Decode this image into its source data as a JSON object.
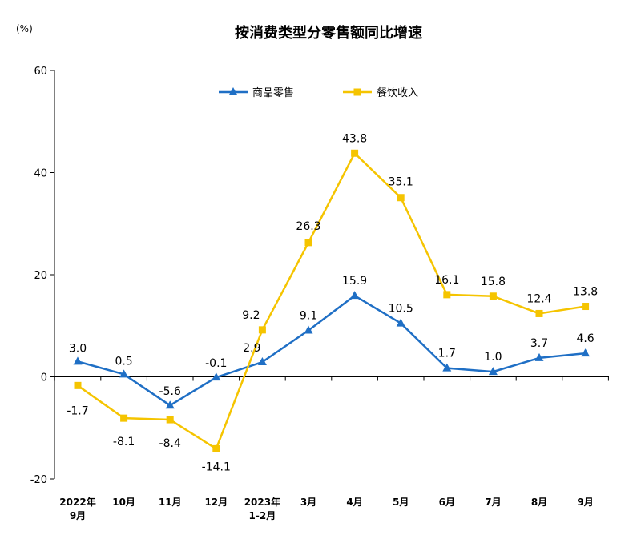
{
  "chart_data": {
    "type": "line",
    "title": "按消费类型分零售额同比增速",
    "y_unit": "(%)",
    "ylim": [
      -20,
      60
    ],
    "yticks": [
      -20,
      0,
      20,
      40,
      60
    ],
    "grid": false,
    "legend_position": "top-center",
    "categories": [
      [
        "2022年",
        "9月"
      ],
      [
        "10月"
      ],
      [
        "11月"
      ],
      [
        "12月"
      ],
      [
        "2023年",
        "1-2月"
      ],
      [
        "3月"
      ],
      [
        "4月"
      ],
      [
        "5月"
      ],
      [
        "6月"
      ],
      [
        "7月"
      ],
      [
        "8月"
      ],
      [
        "9月"
      ]
    ],
    "series": [
      {
        "name": "商品零售",
        "color": "#1f6fc5",
        "marker": "triangle",
        "values": [
          3.0,
          0.5,
          -5.6,
          -0.1,
          2.9,
          9.1,
          15.9,
          10.5,
          1.7,
          1.0,
          3.7,
          4.6
        ],
        "labels": [
          "3.0",
          "0.5",
          "-5.6",
          "-0.1",
          "2.9",
          "9.1",
          "15.9",
          "10.5",
          "1.7",
          "1.0",
          "3.7",
          "4.6"
        ]
      },
      {
        "name": "餐饮收入",
        "color": "#f5c400",
        "marker": "square",
        "values": [
          -1.7,
          -8.1,
          -8.4,
          -14.1,
          9.2,
          26.3,
          43.8,
          35.1,
          16.1,
          15.8,
          12.4,
          13.8
        ],
        "labels": [
          "-1.7",
          "-8.1",
          "-8.4",
          "-14.1",
          "9.2",
          "26.3",
          "43.8",
          "35.1",
          "16.1",
          "15.8",
          "12.4",
          "13.8"
        ]
      }
    ]
  }
}
